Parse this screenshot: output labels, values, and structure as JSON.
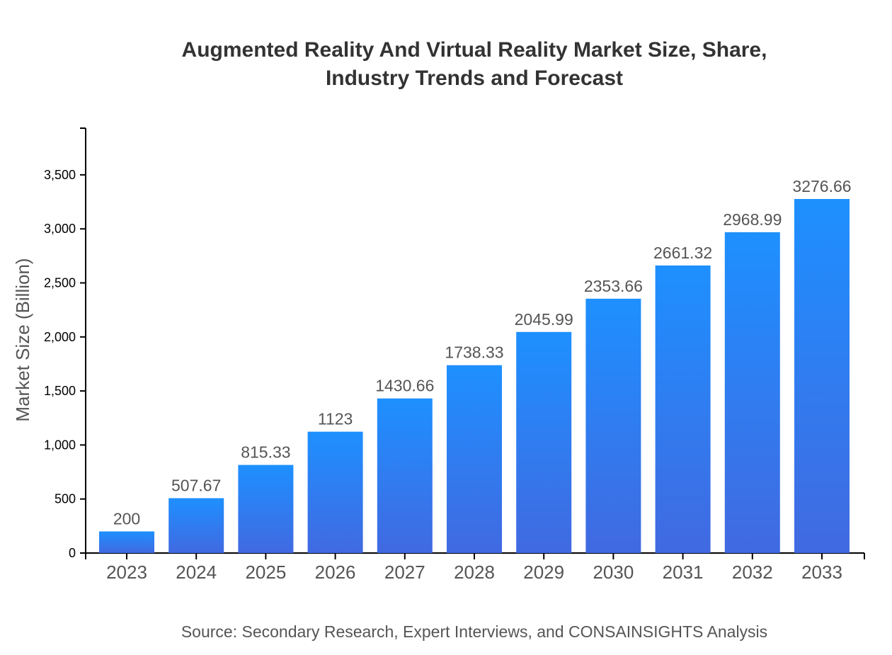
{
  "chart_data": {
    "type": "bar",
    "title_lines": [
      "Augmented Reality And Virtual Reality Market Size, Share,",
      "Industry Trends and Forecast"
    ],
    "xlabel": "",
    "ylabel": "Market Size (Billion)",
    "categories": [
      "2023",
      "2024",
      "2025",
      "2026",
      "2027",
      "2028",
      "2029",
      "2030",
      "2031",
      "2032",
      "2033"
    ],
    "values": [
      200,
      507.67,
      815.33,
      1123,
      1430.66,
      1738.33,
      2045.99,
      2353.66,
      2661.32,
      2968.99,
      3276.66
    ],
    "data_labels": [
      "200",
      "507.67",
      "815.33",
      "1123",
      "1430.66",
      "1738.33",
      "2045.99",
      "2353.66",
      "2661.32",
      "2968.99",
      "3276.66"
    ],
    "ylim": [
      0,
      3932
    ],
    "yticks": [
      0,
      500,
      1000,
      1500,
      2000,
      2500,
      3000,
      3500
    ],
    "ytick_labels": [
      "0",
      "500",
      "1,000",
      "1,500",
      "2,000",
      "2,500",
      "3,000",
      "3,500"
    ],
    "grid": false,
    "legend": "none",
    "colors": {
      "bar_top": "#1E90FF",
      "bar_bottom": "#4169E1",
      "axis": "#000000",
      "text": "#333333",
      "label": "#555555"
    }
  },
  "source": "Source: Secondary Research, Expert Interviews, and CONSAINSIGHTS Analysis"
}
